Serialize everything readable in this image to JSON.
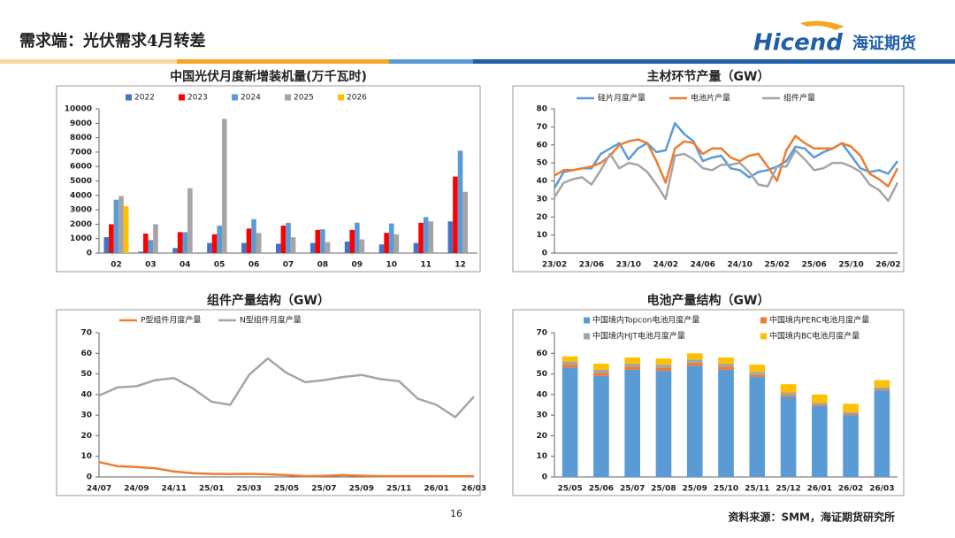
{
  "header": {
    "title": "需求端：光伏需求4月转差",
    "logo_en": "Hicend",
    "logo_cn": "海证期货"
  },
  "footer": {
    "page": "16",
    "source": "资料来源：SMM，海证期货研究所"
  },
  "chart_data": [
    {
      "type": "bar",
      "title": "中国光伏月度新增装机量(万千瓦时)",
      "legend": "top",
      "categories": [
        "02",
        "03",
        "04",
        "05",
        "06",
        "07",
        "08",
        "09",
        "10",
        "11",
        "12"
      ],
      "series": [
        {
          "name": "2022",
          "color": "#4472c4",
          "values": [
            1100,
            100,
            350,
            700,
            700,
            650,
            700,
            800,
            600,
            700,
            2200
          ]
        },
        {
          "name": "2023",
          "color": "#ff0000",
          "values": [
            2000,
            1350,
            1450,
            1300,
            1700,
            1900,
            1600,
            1600,
            1400,
            2100,
            5300
          ]
        },
        {
          "name": "2024",
          "color": "#5b9bd5",
          "values": [
            3700,
            900,
            1450,
            1900,
            2350,
            2100,
            1650,
            2100,
            2050,
            2500,
            7100
          ]
        },
        {
          "name": "2025",
          "color": "#a5a5a5",
          "values": [
            3950,
            2000,
            4500,
            9300,
            1400,
            1100,
            750,
            950,
            1300,
            2200,
            4250
          ]
        },
        {
          "name": "2026",
          "color": "#ffc000",
          "values": [
            3250,
            null,
            null,
            null,
            null,
            null,
            null,
            null,
            null,
            null,
            null
          ]
        }
      ],
      "ylim": [
        0,
        10000
      ],
      "yticks": [
        0,
        1000,
        2000,
        3000,
        4000,
        5000,
        6000,
        7000,
        8000,
        9000,
        10000
      ],
      "grid": false
    },
    {
      "type": "line",
      "title": "主材环节产量（GW）",
      "legend": "top",
      "categories": [
        "23/02",
        null,
        null,
        null,
        "23/06",
        null,
        null,
        null,
        "23/10",
        null,
        null,
        null,
        "24/02",
        null,
        null,
        null,
        "24/06",
        null,
        null,
        null,
        "24/10",
        null,
        null,
        null,
        "25/02",
        null,
        null,
        null,
        "25/06",
        null,
        null,
        null,
        "25/10",
        null,
        null,
        null,
        "26/02",
        null
      ],
      "series": [
        {
          "name": "硅片月度产量",
          "color": "#5b9bd5",
          "values": [
            36,
            45,
            46,
            47,
            47,
            55,
            58,
            61,
            52,
            58,
            61,
            56,
            57,
            72,
            66,
            62,
            51,
            53,
            54,
            47,
            46,
            42,
            45,
            46,
            48,
            51,
            59,
            58,
            53,
            56,
            58,
            61,
            54,
            47,
            45,
            46,
            44,
            51
          ]
        },
        {
          "name": "电池片产量",
          "color": "#ed7d31",
          "values": [
            43,
            46,
            46,
            47,
            48,
            50,
            54,
            60,
            62,
            63,
            61,
            51,
            39,
            58,
            62,
            61,
            55,
            58,
            58,
            53,
            51,
            54,
            55,
            48,
            40,
            57,
            65,
            61,
            58,
            58,
            58,
            61,
            59,
            54,
            44,
            41,
            37,
            47
          ]
        },
        {
          "name": "组件产量",
          "color": "#a5a5a5",
          "values": [
            31,
            39,
            41,
            42,
            38,
            46,
            55,
            47,
            50,
            49,
            45,
            38,
            30,
            54,
            55,
            52,
            47,
            46,
            49,
            49,
            50,
            45,
            38,
            37,
            48,
            48,
            57,
            52,
            46,
            47,
            50,
            50,
            48,
            45,
            38,
            35,
            29,
            39
          ]
        }
      ],
      "ylim": [
        0,
        80
      ],
      "yticks": [
        0,
        10,
        20,
        30,
        40,
        50,
        60,
        70,
        80
      ],
      "grid": false
    },
    {
      "type": "line",
      "title": "组件产量结构（GW）",
      "legend": "top",
      "categories": [
        "24/07",
        null,
        "24/09",
        null,
        "24/11",
        null,
        "25/01",
        null,
        "25/03",
        null,
        "25/05",
        null,
        "25/07",
        null,
        "25/09",
        null,
        "25/11",
        null,
        "26/01",
        null,
        "26/03"
      ],
      "series": [
        {
          "name": "P型组件月度产量",
          "color": "#ed7d31",
          "values": [
            7.2,
            5.2,
            4.8,
            4.2,
            2.6,
            1.8,
            1.5,
            1.4,
            1.5,
            1.3,
            0.9,
            0.4,
            0.5,
            0.9,
            0.6,
            0.4,
            0.4,
            0.4,
            0.4,
            0.3,
            0.3
          ]
        },
        {
          "name": "N型组件月度产量",
          "color": "#a5a5a5",
          "values": [
            39.5,
            43.5,
            44,
            47,
            48,
            43,
            36.5,
            35,
            49.5,
            57.5,
            50.5,
            46,
            47,
            48.5,
            49.5,
            47.5,
            46.5,
            38,
            35,
            29,
            39
          ]
        }
      ],
      "ylim": [
        0,
        70
      ],
      "yticks": [
        0,
        10,
        20,
        30,
        40,
        50,
        60,
        70
      ],
      "grid": false
    },
    {
      "type": "stacked_bar",
      "title": "电池产量结构（GW）",
      "legend": "top",
      "categories": [
        "25/05",
        "25/06",
        "25/07",
        "25/08",
        "25/09",
        "25/10",
        "25/11",
        "25/12",
        "26/01",
        "26/02",
        "26/03"
      ],
      "series": [
        {
          "name": "中国境内Topcon电池月度产量",
          "color": "#5b9bd5",
          "values": [
            53,
            49,
            52,
            51.5,
            54,
            52,
            48.5,
            39,
            34.5,
            30,
            42
          ]
        },
        {
          "name": "中国境内PERC电池月度产量",
          "color": "#ed7d31",
          "values": [
            1.5,
            1.5,
            1.5,
            1.5,
            1.5,
            1.5,
            1,
            0.8,
            0.5,
            0.5,
            0.5
          ]
        },
        {
          "name": "中国境内HJT电池月度产量",
          "color": "#a5a5a5",
          "values": [
            1.5,
            1.5,
            1.5,
            1.5,
            1.5,
            1.5,
            1.5,
            1.2,
            1,
            1,
            1
          ]
        },
        {
          "name": "中国境内BC电池月度产量",
          "color": "#ffc000",
          "values": [
            2.5,
            3,
            3,
            3,
            3,
            3,
            3.5,
            4,
            4,
            4,
            3.5
          ]
        }
      ],
      "ylim": [
        0,
        70
      ],
      "yticks": [
        0,
        10,
        20,
        30,
        40,
        50,
        60,
        70
      ],
      "grid": false
    }
  ]
}
